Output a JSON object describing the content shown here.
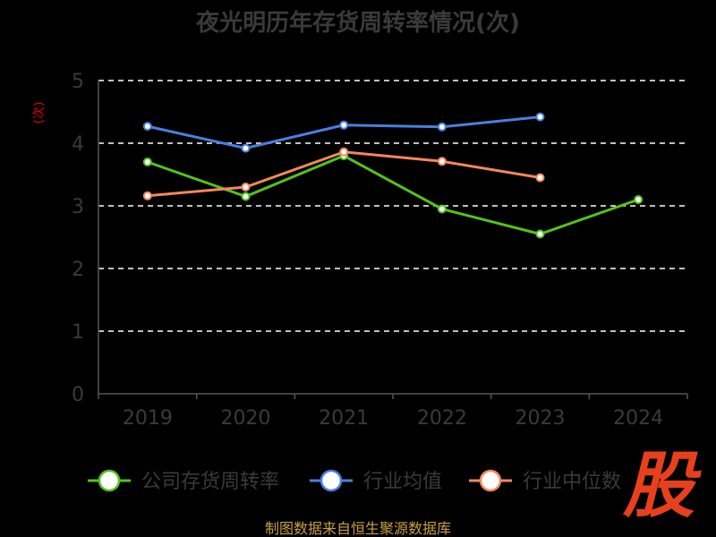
{
  "chart_data": {
    "type": "line",
    "title": "夜光明历年存货周转率情况(次)",
    "ylabel": "(次)",
    "xlabel": "",
    "categories": [
      "2019",
      "2020",
      "2021",
      "2022",
      "2023",
      "2024"
    ],
    "ylim": [
      0,
      5
    ],
    "yticks": [
      "0",
      "1",
      "2",
      "3",
      "4",
      "5"
    ],
    "grid": true,
    "legend_position": "bottom",
    "series": [
      {
        "name": "公司存货周转率",
        "color": "#52c41a",
        "values": [
          3.7,
          3.15,
          3.8,
          2.95,
          2.55,
          3.1
        ]
      },
      {
        "name": "行业均值",
        "color": "#4a7fe0",
        "values": [
          4.27,
          3.92,
          4.29,
          4.26,
          4.42,
          null
        ]
      },
      {
        "name": "行业中位数",
        "color": "#f4875a",
        "values": [
          3.16,
          3.3,
          3.86,
          3.71,
          3.45,
          null
        ]
      }
    ]
  },
  "source": "制图数据来自恒生聚源数据库",
  "badge": "股"
}
